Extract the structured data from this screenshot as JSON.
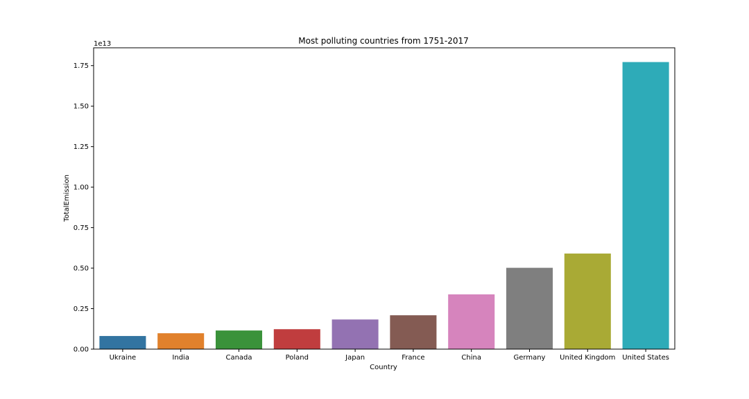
{
  "chart_data": {
    "type": "bar",
    "title": "Most polluting countries from 1751-2017",
    "xlabel": "Country",
    "ylabel": "TotalEmission",
    "offset_label": "1e13",
    "ylim": [
      0,
      1.86
    ],
    "yticks": [
      "0.00",
      "0.25",
      "0.50",
      "0.75",
      "1.00",
      "1.25",
      "1.50",
      "1.75"
    ],
    "ytick_values": [
      0,
      0.25,
      0.5,
      0.75,
      1.0,
      1.25,
      1.5,
      1.75
    ],
    "categories": [
      "Ukraine",
      "India",
      "Canada",
      "Poland",
      "Japan",
      "France",
      "China",
      "Germany",
      "United Kingdom",
      "United States"
    ],
    "values": [
      0.081,
      0.098,
      0.115,
      0.123,
      0.183,
      0.209,
      0.338,
      0.502,
      0.59,
      1.772
    ],
    "colors": [
      "#3274a1",
      "#e1812c",
      "#3a923a",
      "#c03d3e",
      "#9372b2",
      "#845b53",
      "#d684bd",
      "#7f7f7f",
      "#a9aa35",
      "#2eabb8"
    ],
    "grid": false,
    "legend": "none"
  }
}
